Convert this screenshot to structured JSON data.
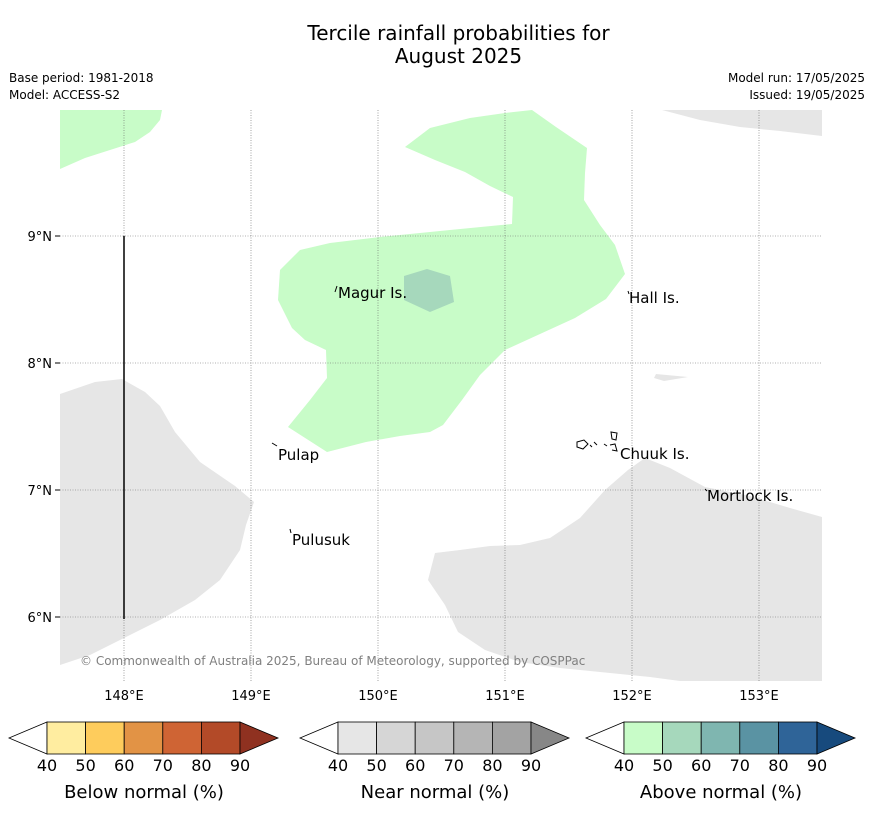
{
  "title_line1": "Tercile rainfall probabilities for",
  "title_line2": "August 2025",
  "meta": {
    "base_period": "Base period: 1981-2018",
    "model": "Model: ACCESS-S2",
    "model_run": "Model run: 17/05/2025",
    "issued": "Issued: 19/05/2025"
  },
  "map": {
    "lat_labels": [
      "9°N",
      "8°N",
      "7°N",
      "6°N"
    ],
    "lon_labels": [
      "148°E",
      "149°E",
      "150°E",
      "151°E",
      "152°E",
      "153°E"
    ],
    "places": {
      "magur": "Magur Is.",
      "hall": "Hall Is.",
      "pulap": "Pulap",
      "chuuk": "Chuuk Is.",
      "mortlock": "Mortlock Is.",
      "pulusuk": "Pulusuk"
    },
    "copyright": "© Commonwealth of Australia 2025, Bureau of Meteorology, supported by COSPPac"
  },
  "legend": {
    "ticks": [
      "40",
      "50",
      "60",
      "70",
      "80",
      "90"
    ],
    "below_label": "Below normal (%)",
    "near_label": "Near normal (%)",
    "above_label": "Above normal (%)",
    "below_colors": [
      "#ffffff",
      "#ffeda0",
      "#fecc5c",
      "#e29345",
      "#cf6434",
      "#b34a28",
      "#8f3120"
    ],
    "near_colors": [
      "#ffffff",
      "#e6e6e6",
      "#d6d6d6",
      "#c6c6c6",
      "#b5b5b5",
      "#a3a3a3",
      "#878787"
    ],
    "above_colors": [
      "#ffffff",
      "#c8fcc8",
      "#a6d8bc",
      "#7fb6b0",
      "#5a93a3",
      "#2f6498",
      "#174a7d"
    ]
  }
}
